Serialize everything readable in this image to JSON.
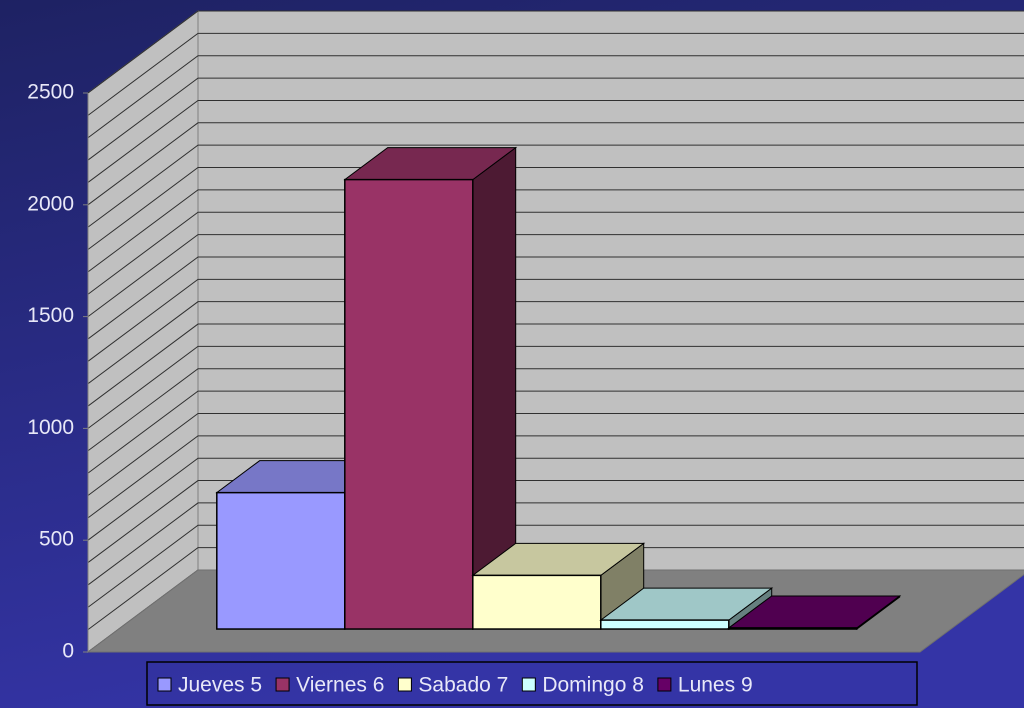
{
  "chart_data": {
    "type": "bar3d",
    "categories": [
      null
    ],
    "series": [
      {
        "name": "Jueves 5",
        "color": "#9999ff",
        "values": [
          610
        ]
      },
      {
        "name": "Viernes 6",
        "color": "#993366",
        "values": [
          2010
        ]
      },
      {
        "name": "Sabado 7",
        "color": "#ffffcc",
        "values": [
          240
        ]
      },
      {
        "name": "Domingo 8",
        "color": "#ccffff",
        "values": [
          40
        ]
      },
      {
        "name": "Lunes 9",
        "color": "#660066",
        "values": [
          5
        ]
      }
    ],
    "ylim": [
      0,
      2500
    ],
    "yticks": [
      0,
      500,
      1000,
      1500,
      2000,
      2500
    ],
    "minor_yticks": [
      0,
      100,
      200,
      300,
      400,
      500,
      600,
      700,
      800,
      900,
      1000,
      1100,
      1200,
      1300,
      1400,
      1500,
      1600,
      1700,
      1800,
      1900,
      2000,
      2100,
      2200,
      2300,
      2400,
      2500
    ],
    "grid": true,
    "legend": "bottom"
  }
}
